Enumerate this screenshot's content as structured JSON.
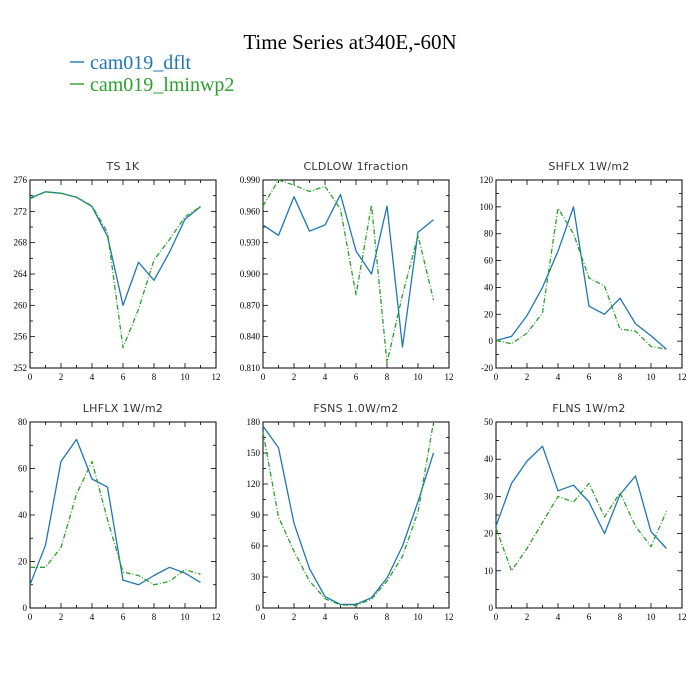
{
  "figure": {
    "title": "Time Series at340E,-60N",
    "legend": [
      {
        "name": "cam019_dflt",
        "color": "#1f77b4"
      },
      {
        "name": "cam019_lminwp2",
        "color": "#2ca02c"
      }
    ]
  },
  "chart_data": [
    {
      "type": "line",
      "title": "TS   1K",
      "x": [
        0,
        1,
        2,
        3,
        4,
        5,
        6,
        7,
        8,
        9,
        10,
        11
      ],
      "xlim": [
        0,
        12
      ],
      "xticks": [
        0,
        2,
        4,
        6,
        8,
        10,
        12
      ],
      "ylim": [
        252,
        276
      ],
      "yticks": [
        252,
        256,
        260,
        264,
        268,
        272,
        276
      ],
      "ytick_labels": [
        "252",
        "256",
        "260",
        "264",
        "268",
        "272",
        "276"
      ],
      "series": [
        {
          "name": "cam019_dflt",
          "color": "#1f77b4",
          "dashed": false,
          "values": [
            273.7,
            274.5,
            274.3,
            273.8,
            272.6,
            268.8,
            260.0,
            265.5,
            263.2,
            266.8,
            271.0,
            272.6
          ]
        },
        {
          "name": "cam019_lminwp2",
          "color": "#2ca02c",
          "dashed": true,
          "values": [
            273.6,
            274.5,
            274.3,
            273.8,
            272.7,
            269.3,
            254.6,
            259.5,
            265.8,
            268.4,
            271.3,
            272.6
          ]
        }
      ]
    },
    {
      "type": "line",
      "title": "CLDLOW   1fraction",
      "x": [
        0,
        1,
        2,
        3,
        4,
        5,
        6,
        7,
        8,
        9,
        10,
        11
      ],
      "xlim": [
        0,
        12
      ],
      "xticks": [
        0,
        2,
        4,
        6,
        8,
        10,
        12
      ],
      "ylim": [
        0.81,
        0.99
      ],
      "yticks": [
        0.81,
        0.84,
        0.87,
        0.9,
        0.93,
        0.96,
        0.99
      ],
      "ytick_labels": [
        "0.810",
        "0.840",
        "0.870",
        "0.900",
        "0.930",
        "0.960",
        "0.990"
      ],
      "series": [
        {
          "name": "cam019_dflt",
          "color": "#1f77b4",
          "dashed": false,
          "values": [
            0.947,
            0.937,
            0.974,
            0.941,
            0.947,
            0.976,
            0.922,
            0.9,
            0.965,
            0.83,
            0.94,
            0.952
          ]
        },
        {
          "name": "cam019_lminwp2",
          "color": "#2ca02c",
          "dashed": true,
          "values": [
            0.965,
            0.99,
            0.985,
            0.979,
            0.984,
            0.962,
            0.88,
            0.966,
            0.815,
            0.88,
            0.937,
            0.875
          ]
        }
      ]
    },
    {
      "type": "line",
      "title": "SHFLX   1W/m2",
      "x": [
        0,
        1,
        2,
        3,
        4,
        5,
        6,
        7,
        8,
        9,
        10,
        11
      ],
      "xlim": [
        0,
        12
      ],
      "xticks": [
        0,
        2,
        4,
        6,
        8,
        10,
        12
      ],
      "ylim": [
        -20,
        120
      ],
      "yticks": [
        -20,
        0,
        20,
        40,
        60,
        80,
        100,
        120
      ],
      "ytick_labels": [
        "-20",
        "0",
        "20",
        "40",
        "60",
        "80",
        "100",
        "120"
      ],
      "series": [
        {
          "name": "cam019_dflt",
          "color": "#1f77b4",
          "dashed": false,
          "values": [
            0.5,
            3.5,
            19.0,
            40.0,
            67.0,
            100.0,
            26.0,
            20.0,
            32.0,
            13.0,
            4.0,
            -6.0
          ]
        },
        {
          "name": "cam019_lminwp2",
          "color": "#2ca02c",
          "dashed": true,
          "values": [
            0.5,
            -2.0,
            6.0,
            21.0,
            99.0,
            80.0,
            47.0,
            41.0,
            9.0,
            7.5,
            -4.0,
            -6.0
          ]
        }
      ]
    },
    {
      "type": "line",
      "title": "LHFLX   1W/m2",
      "x": [
        0,
        1,
        2,
        3,
        4,
        5,
        6,
        7,
        8,
        9,
        10,
        11
      ],
      "xlim": [
        0,
        12
      ],
      "xticks": [
        0,
        2,
        4,
        6,
        8,
        10,
        12
      ],
      "ylim": [
        0,
        80
      ],
      "yticks": [
        0,
        20,
        40,
        60,
        80
      ],
      "ytick_labels": [
        "0",
        "20",
        "40",
        "60",
        "80"
      ],
      "series": [
        {
          "name": "cam019_dflt",
          "color": "#1f77b4",
          "dashed": false,
          "values": [
            10.0,
            27.0,
            63.0,
            72.5,
            55.5,
            52.0,
            12.0,
            10.0,
            14.0,
            17.5,
            15.0,
            11.0
          ]
        },
        {
          "name": "cam019_lminwp2",
          "color": "#2ca02c",
          "dashed": true,
          "values": [
            17.5,
            17.5,
            26.0,
            49.0,
            63.0,
            38.0,
            15.5,
            14.0,
            10.0,
            11.5,
            16.5,
            14.5
          ]
        }
      ]
    },
    {
      "type": "line",
      "title": "FSNS   1.0W/m2",
      "x": [
        0,
        1,
        2,
        3,
        4,
        5,
        6,
        7,
        8,
        9,
        10,
        11
      ],
      "xlim": [
        0,
        12
      ],
      "xticks": [
        0,
        2,
        4,
        6,
        8,
        10,
        12
      ],
      "ylim": [
        0,
        180
      ],
      "yticks": [
        0,
        30,
        60,
        90,
        120,
        150,
        180
      ],
      "ytick_labels": [
        "0",
        "30",
        "60",
        "90",
        "120",
        "150",
        "180"
      ],
      "series": [
        {
          "name": "cam019_dflt",
          "color": "#1f77b4",
          "dashed": false,
          "values": [
            176.0,
            155.0,
            82.0,
            38.0,
            11.0,
            3.5,
            3.5,
            10.0,
            29.0,
            60.0,
            103.0,
            150.0
          ]
        },
        {
          "name": "cam019_lminwp2",
          "color": "#2ca02c",
          "dashed": true,
          "values": [
            170.0,
            88.0,
            55.0,
            26.0,
            9.0,
            3.0,
            2.5,
            8.5,
            26.0,
            50.0,
            93.0,
            180.0
          ]
        }
      ]
    },
    {
      "type": "line",
      "title": "FLNS   1W/m2",
      "x": [
        0,
        1,
        2,
        3,
        4,
        5,
        6,
        7,
        8,
        9,
        10,
        11
      ],
      "xlim": [
        0,
        12
      ],
      "xticks": [
        0,
        2,
        4,
        6,
        8,
        10,
        12
      ],
      "ylim": [
        0,
        50
      ],
      "yticks": [
        0,
        10,
        20,
        30,
        40,
        50
      ],
      "ytick_labels": [
        "0",
        "10",
        "20",
        "30",
        "40",
        "50"
      ],
      "series": [
        {
          "name": "cam019_dflt",
          "color": "#1f77b4",
          "dashed": false,
          "values": [
            22.0,
            33.5,
            39.5,
            43.5,
            31.5,
            33.0,
            28.5,
            20.0,
            30.5,
            35.5,
            20.5,
            16.0
          ]
        },
        {
          "name": "cam019_lminwp2",
          "color": "#2ca02c",
          "dashed": true,
          "values": [
            21.5,
            10.0,
            16.0,
            23.0,
            30.0,
            28.5,
            33.5,
            24.5,
            31.0,
            22.0,
            16.5,
            26.0
          ]
        }
      ]
    }
  ]
}
